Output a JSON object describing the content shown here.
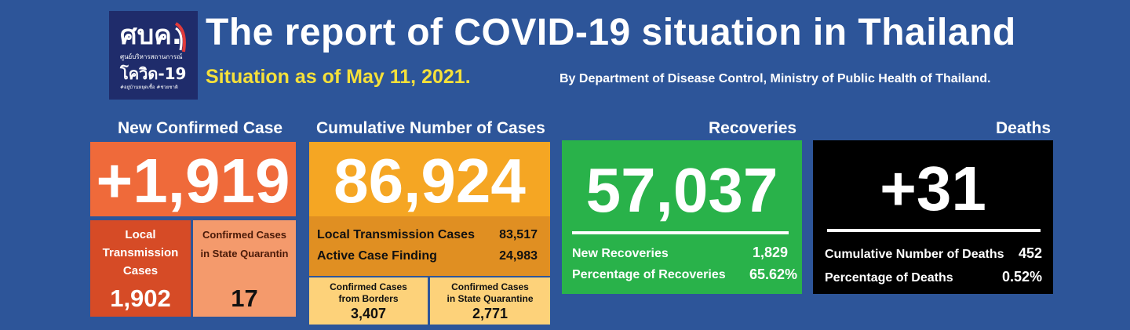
{
  "header": {
    "logo_text_top": "ศบค.",
    "logo_text_small": "ศูนย์บริหารสถานการณ์",
    "logo_text_main": "โควิด-19",
    "logo_text_footer": "#อยู่บ้านหยุดเชื้อ #ช่วยชาติ",
    "title": "The report of COVID-19 situation in Thailand",
    "subtitle": "Situation as of May 11, 2021.",
    "byline": "By Department of Disease Control, Ministry of Public Health of Thailand."
  },
  "new_confirmed": {
    "heading": "New Confirmed Case",
    "value": "+1,919",
    "local_label_1": "Local",
    "local_label_2": "Transmission",
    "local_label_3": "Cases",
    "local_value": "1,902",
    "quarantine_label_1": "Confirmed Cases",
    "quarantine_label_2": "in State Quarantin",
    "quarantine_value": "17"
  },
  "cumulative": {
    "heading": "Cumulative Number of Cases",
    "value": "86,924",
    "local_label": "Local Transmission Cases",
    "local_value": "83,517",
    "acf_label": "Active Case Finding",
    "acf_value": "24,983",
    "borders_label_1": "Confirmed Cases",
    "borders_label_2": "from Borders",
    "borders_value": "3,407",
    "quarantine_label_1": "Confirmed Cases",
    "quarantine_label_2": "in State Quarantine",
    "quarantine_value": "2,771"
  },
  "recoveries": {
    "heading": "Recoveries",
    "value": "57,037",
    "new_label": "New Recoveries",
    "new_value": "1,829",
    "pct_label": "Percentage of Recoveries",
    "pct_value": "65.62%"
  },
  "deaths": {
    "heading": "Deaths",
    "value": "+31",
    "cum_label": "Cumulative Number of Deaths",
    "cum_value": "452",
    "pct_label": "Percentage of Deaths",
    "pct_value": "0.52%"
  },
  "colors": {
    "background": "#2d5599",
    "new_case": "#ef6a3a",
    "local_case": "#d64b26",
    "quarantine_case": "#f49a6c",
    "cumulative": "#f5a623",
    "cumulative_detail": "#e08f22",
    "cumulative_sub": "#fdd27a",
    "recoveries": "#29b24a",
    "deaths": "#000000",
    "subtitle": "#f5e03a"
  }
}
